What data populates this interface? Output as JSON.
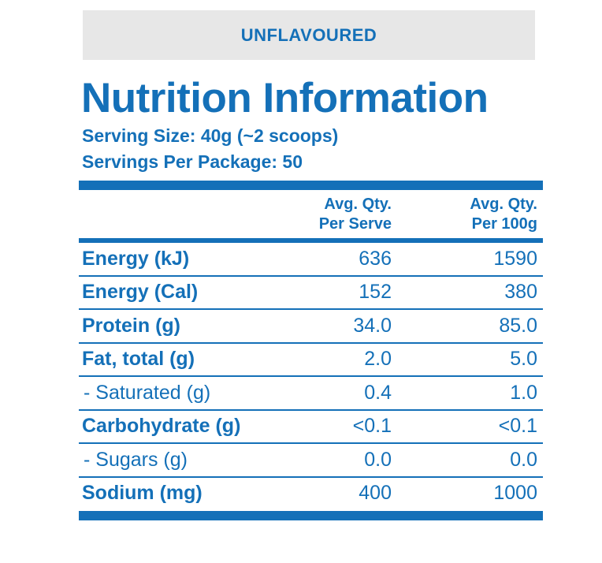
{
  "flavour": "UNFLAVOURED",
  "title": "Nutrition Information",
  "serving_size": "Serving Size: 40g (~2 scoops)",
  "servings_per_package": "Servings Per Package: 50",
  "columns": {
    "per_serve": [
      "Avg. Qty.",
      "Per Serve"
    ],
    "per_100g": [
      "Avg. Qty.",
      "Per 100g"
    ]
  },
  "rows": [
    {
      "label": "Energy (kJ)",
      "per_serve": "636",
      "per_100g": "1590"
    },
    {
      "label": "Energy (Cal)",
      "per_serve": "152",
      "per_100g": "380"
    },
    {
      "label": "Protein (g)",
      "per_serve": "34.0",
      "per_100g": "85.0"
    },
    {
      "label": "Fat, total (g)",
      "per_serve": "2.0",
      "per_100g": "5.0"
    },
    {
      "label": "- Saturated (g)",
      "per_serve": "0.4",
      "per_100g": "1.0"
    },
    {
      "label": "Carbohydrate (g)",
      "per_serve": "<0.1",
      "per_100g": "<0.1"
    },
    {
      "label": "- Sugars (g)",
      "per_serve": "0.0",
      "per_100g": "0.0"
    },
    {
      "label": "Sodium (mg)",
      "per_serve": "400",
      "per_100g": "1000"
    }
  ],
  "colors": {
    "brand_blue": "#1470b8",
    "banner_gray": "#e7e7e7"
  }
}
